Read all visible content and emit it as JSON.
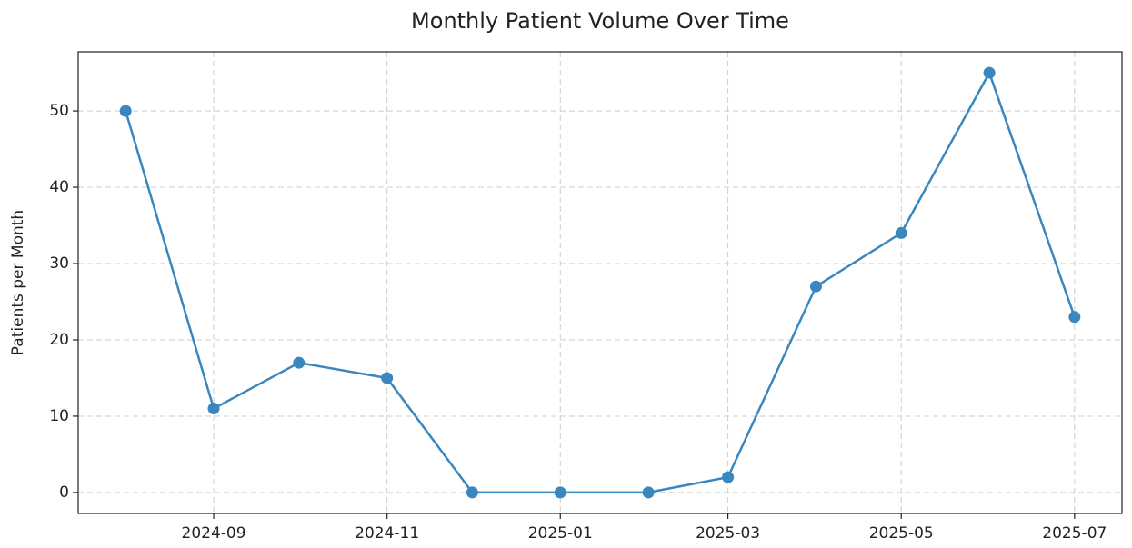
{
  "chart_data": {
    "type": "line",
    "title": "Monthly Patient Volume Over Time",
    "ylabel": "Patients per Month",
    "x": [
      "2024-08",
      "2024-09",
      "2024-10",
      "2024-11",
      "2024-12",
      "2025-01",
      "2025-02",
      "2025-03",
      "2025-04",
      "2025-05",
      "2025-06",
      "2025-07"
    ],
    "series": [
      {
        "name": "Patients",
        "color": "#3a87c0",
        "values": [
          50,
          11,
          17,
          15,
          0,
          0,
          0,
          2,
          27,
          34,
          55,
          23
        ]
      }
    ],
    "xticks": [
      "2024-09",
      "2024-11",
      "2025-01",
      "2025-03",
      "2025-05",
      "2025-07"
    ],
    "ylim": [
      -2.75,
      57.75
    ],
    "yticks": [
      0,
      10,
      20,
      30,
      40,
      50
    ],
    "grid": true
  }
}
